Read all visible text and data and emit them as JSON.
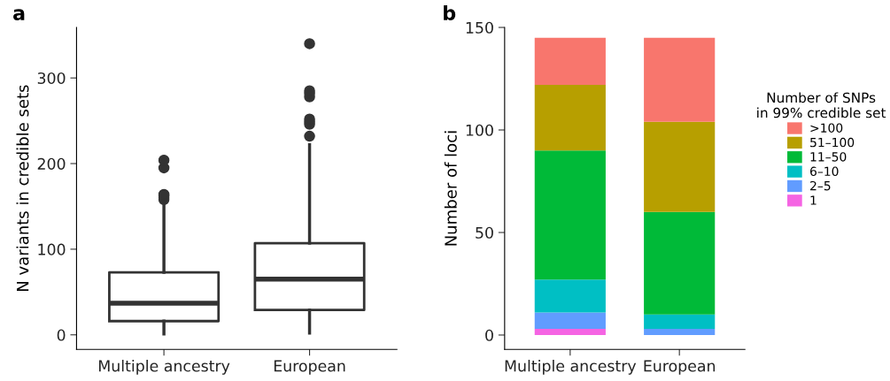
{
  "chart_data": [
    {
      "type": "box",
      "annotations": [
        "a"
      ],
      "ylabel": "N variants in credible sets",
      "categories": [
        "Multiple ancestry",
        "European"
      ],
      "ylim": [
        -17,
        359
      ],
      "yticks": [
        0,
        100,
        200,
        300
      ],
      "grid": false,
      "legend": false,
      "boxes": [
        {
          "low": 1,
          "q1": 16,
          "median": 37,
          "q3": 73,
          "high": 151,
          "outliers": [
            158,
            160,
            162,
            164,
            195,
            204
          ]
        },
        {
          "low": 2,
          "q1": 29,
          "median": 65,
          "q3": 107,
          "high": 222,
          "outliers": [
            232,
            246,
            249,
            252,
            278,
            282,
            285,
            340
          ]
        }
      ]
    },
    {
      "type": "bar",
      "stacked": true,
      "annotations": [
        "b"
      ],
      "ylabel": "Number of loci",
      "legend_title": "Number of SNPs\nin 99% credible set",
      "legend": "right",
      "grid": false,
      "categories": [
        "Multiple ancestry",
        "European"
      ],
      "ylim": [
        -7,
        150
      ],
      "yticks": [
        0,
        50,
        100,
        150
      ],
      "series": [
        {
          "name": "1",
          "color": "#f564e3",
          "values": [
            3,
            0
          ]
        },
        {
          "name": "2–5",
          "color": "#619cff",
          "values": [
            8,
            3
          ]
        },
        {
          "name": "6–10",
          "color": "#00bfc4",
          "values": [
            16,
            7
          ]
        },
        {
          "name": "11–50",
          "color": "#00ba38",
          "values": [
            63,
            50
          ]
        },
        {
          "name": "51–100",
          "color": "#b79f00",
          "values": [
            32,
            44
          ]
        },
        {
          "name": ">100",
          "color": "#f8766d",
          "values": [
            23,
            41
          ]
        }
      ]
    }
  ]
}
